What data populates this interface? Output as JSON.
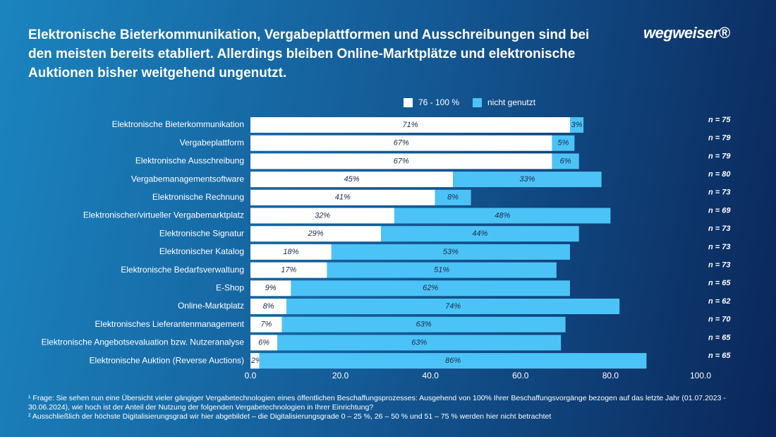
{
  "chart_data": {
    "type": "stacked-bar-horizontal",
    "title": "Elektronische Bieterkommunikation, Vergabeplattformen und Ausschreibungen sind bei den meisten bereits etabliert. Allerdings bleiben Online-Marktplätze und elektronische Auktionen bisher weitgehend ungenutzt.",
    "logo": "wegweiser®",
    "categories": [
      "Elektronische Bieterkommunikation",
      "Vergabeplattform",
      "Elektronische Ausschreibung",
      "Vergabemanagementsoftware",
      "Elektronische Rechnung",
      "Elektronischer/virtueller Vergabemarktplatz",
      "Elektronische Signatur",
      "Elektronischer Katalog",
      "Elektronische Bedarfsverwaltung",
      "E-Shop",
      "Online-Marktplatz",
      "Elektronisches Lieferantenmanagement",
      "Elektronische Angebotsevaluation bzw. Nutzeranalyse",
      "Elektronische Auktion (Reverse Auctions)"
    ],
    "series": [
      {
        "name": "76 - 100 %",
        "color": "#ffffff",
        "values": [
          71,
          67,
          67,
          45,
          41,
          32,
          29,
          18,
          17,
          9,
          8,
          7,
          6,
          2
        ],
        "value_labels": [
          "71%",
          "67%",
          "67%",
          "45%",
          "41%",
          "32%",
          "29%",
          "18%",
          "17%",
          "9%",
          "8%",
          "7%",
          "6%",
          "2%"
        ]
      },
      {
        "name": "nicht genutzt",
        "color": "#4cc3f7",
        "values": [
          3,
          5,
          6,
          33,
          8,
          48,
          44,
          53,
          51,
          62,
          74,
          63,
          63,
          86
        ],
        "value_labels": [
          "3%",
          "5%",
          "6%",
          "33%",
          "8%",
          "48%",
          "44%",
          "53%",
          "51%",
          "62%",
          "74%",
          "63%",
          "63%",
          "86%"
        ]
      }
    ],
    "n_labels": [
      "n = 75",
      "n = 79",
      "n = 79",
      "n = 80",
      "n = 73",
      "n = 69",
      "n = 73",
      "n = 73",
      "n = 73",
      "n = 65",
      "n = 62",
      "n = 70",
      "n = 65",
      "n = 65"
    ],
    "xlim": [
      0,
      100
    ],
    "xticks": [
      {
        "value": 0,
        "label": "0.0"
      },
      {
        "value": 20,
        "label": "20.0"
      },
      {
        "value": 40,
        "label": "40.0"
      },
      {
        "value": 60,
        "label": "60.0"
      },
      {
        "value": 80,
        "label": "80.0"
      },
      {
        "value": 100,
        "label": "100.0"
      }
    ],
    "footnotes": [
      "¹ Frage: Sie sehen nun eine Übersicht vieler gängiger Vergabetechnologien eines öffentlichen Beschaffungsprozesses: Ausgehend von 100% Ihrer Beschaffungsvorgänge bezogen auf das letzte Jahr (01.07.2023 - 30.06.2024), wie hoch ist der Anteil der Nutzung der folgenden Vergabetechnologien in Ihrer Einrichtung?",
      "² Ausschließlich der höchste Digitalisierungsgrad wir hier abgebildet – die Digitalisierungsgrade 0 – 25 %, 26 – 50 % und 51 – 75 % werden hier nicht betrachtet"
    ]
  }
}
